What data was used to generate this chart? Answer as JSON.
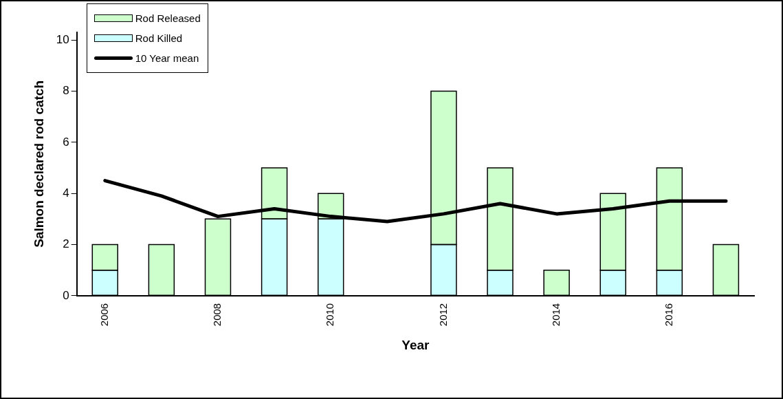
{
  "chart_data": {
    "type": "bar",
    "xlabel": "Year",
    "ylabel": "Salmon declared rod catch",
    "categories": [
      "2006",
      null,
      "2008",
      null,
      "2010",
      null,
      "2012",
      null,
      "2014",
      null,
      "2016",
      null
    ],
    "stacked": true,
    "series": [
      {
        "name": "Rod Killed",
        "color": "#ccffff",
        "values": [
          1,
          0,
          0,
          3,
          3,
          0,
          2,
          1,
          0,
          1,
          1,
          0
        ]
      },
      {
        "name": "Rod Released",
        "color": "#ccffcc",
        "values": [
          1,
          2,
          3,
          2,
          1,
          0,
          6,
          4,
          1,
          3,
          4,
          2
        ]
      },
      {
        "name": "10 Year mean",
        "type": "line",
        "color": "#000000",
        "values": [
          4.5,
          3.9,
          3.1,
          3.4,
          3.1,
          2.9,
          3.2,
          3.6,
          3.2,
          3.4,
          3.7,
          3.7
        ]
      }
    ],
    "ylim": [
      0,
      10.3
    ],
    "yticks": [
      0,
      2,
      4,
      6,
      8,
      10
    ],
    "grid": false,
    "legend": "top left",
    "marker": "none"
  }
}
